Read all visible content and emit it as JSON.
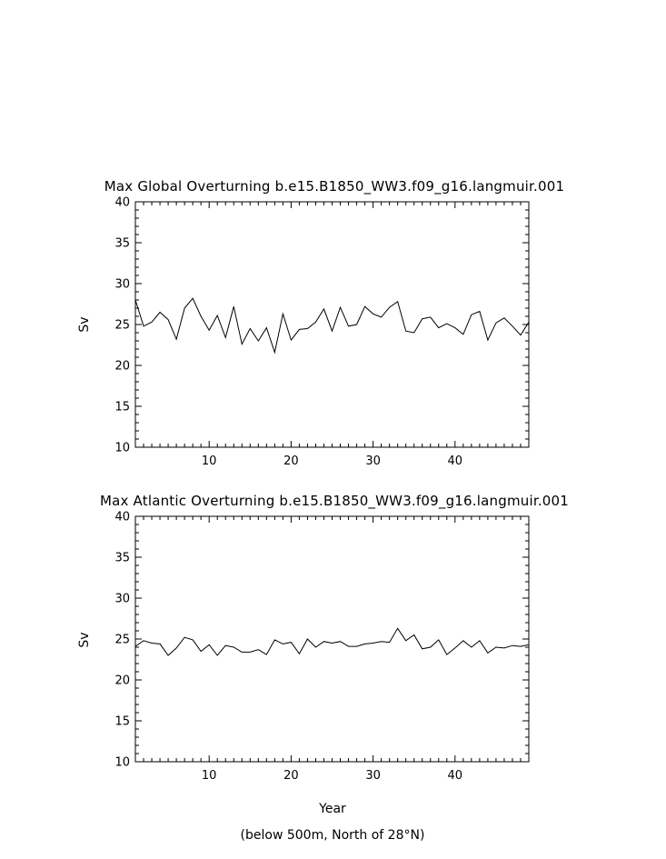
{
  "chart_data": [
    {
      "type": "line",
      "title": "Max Global Overturning b.e15.B1850_WW3.f09_g16.langmuir.001",
      "xlabel": "",
      "ylabel": "Sv",
      "xlim": [
        1,
        49
      ],
      "ylim": [
        10,
        40
      ],
      "xticks": [
        "10",
        "20",
        "30",
        "40"
      ],
      "yticks": [
        "10",
        "15",
        "20",
        "25",
        "30",
        "35",
        "40"
      ],
      "grid": false,
      "series": [
        {
          "x": [
            1,
            2,
            3,
            4,
            5,
            6,
            7,
            8,
            9,
            10,
            11,
            12,
            13,
            14,
            15,
            16,
            17,
            18,
            19,
            20,
            21,
            22,
            23,
            24,
            25,
            26,
            27,
            28,
            29,
            30,
            31,
            32,
            33,
            34,
            35,
            36,
            37,
            38,
            39,
            40,
            41,
            42,
            43,
            44,
            45,
            46,
            47,
            48,
            49
          ],
          "values": [
            28.0,
            24.8,
            25.3,
            26.5,
            25.6,
            23.2,
            27.0,
            28.2,
            26.0,
            24.3,
            26.1,
            23.4,
            27.2,
            22.6,
            24.5,
            23.0,
            24.6,
            21.6,
            26.3,
            23.1,
            24.4,
            24.5,
            25.3,
            26.9,
            24.2,
            27.1,
            24.8,
            25.0,
            27.2,
            26.3,
            25.9,
            27.1,
            27.8,
            24.2,
            24.0,
            25.7,
            25.9,
            24.6,
            25.1,
            24.6,
            23.8,
            26.2,
            26.6,
            23.1,
            25.2,
            25.8,
            24.8,
            23.7,
            25.3
          ]
        }
      ]
    },
    {
      "type": "line",
      "title": "Max Atlantic Overturning b.e15.B1850_WW3.f09_g16.langmuir.001",
      "xlabel": "Year",
      "ylabel": "Sv",
      "xlim": [
        1,
        49
      ],
      "ylim": [
        10,
        40
      ],
      "xticks": [
        "10",
        "20",
        "30",
        "40"
      ],
      "yticks": [
        "10",
        "15",
        "20",
        "25",
        "30",
        "35",
        "40"
      ],
      "grid": false,
      "series": [
        {
          "x": [
            1,
            2,
            3,
            4,
            5,
            6,
            7,
            8,
            9,
            10,
            11,
            12,
            13,
            14,
            15,
            16,
            17,
            18,
            19,
            20,
            21,
            22,
            23,
            24,
            25,
            26,
            27,
            28,
            29,
            30,
            31,
            32,
            33,
            34,
            35,
            36,
            37,
            38,
            39,
            40,
            41,
            42,
            43,
            44,
            45,
            46,
            47,
            48,
            49
          ],
          "values": [
            24.1,
            24.8,
            24.5,
            24.4,
            23.0,
            23.9,
            25.2,
            24.9,
            23.5,
            24.3,
            23.0,
            24.2,
            24.0,
            23.4,
            23.4,
            23.7,
            23.1,
            24.9,
            24.4,
            24.6,
            23.2,
            25.0,
            24.0,
            24.7,
            24.5,
            24.7,
            24.1,
            24.1,
            24.4,
            24.5,
            24.7,
            24.6,
            26.3,
            24.8,
            25.5,
            23.8,
            24.0,
            24.9,
            23.1,
            23.9,
            24.8,
            24.0,
            24.8,
            23.3,
            24.0,
            23.9,
            24.2,
            24.1,
            24.3
          ]
        }
      ]
    }
  ],
  "footnote": "(below 500m, North of 28°N)"
}
